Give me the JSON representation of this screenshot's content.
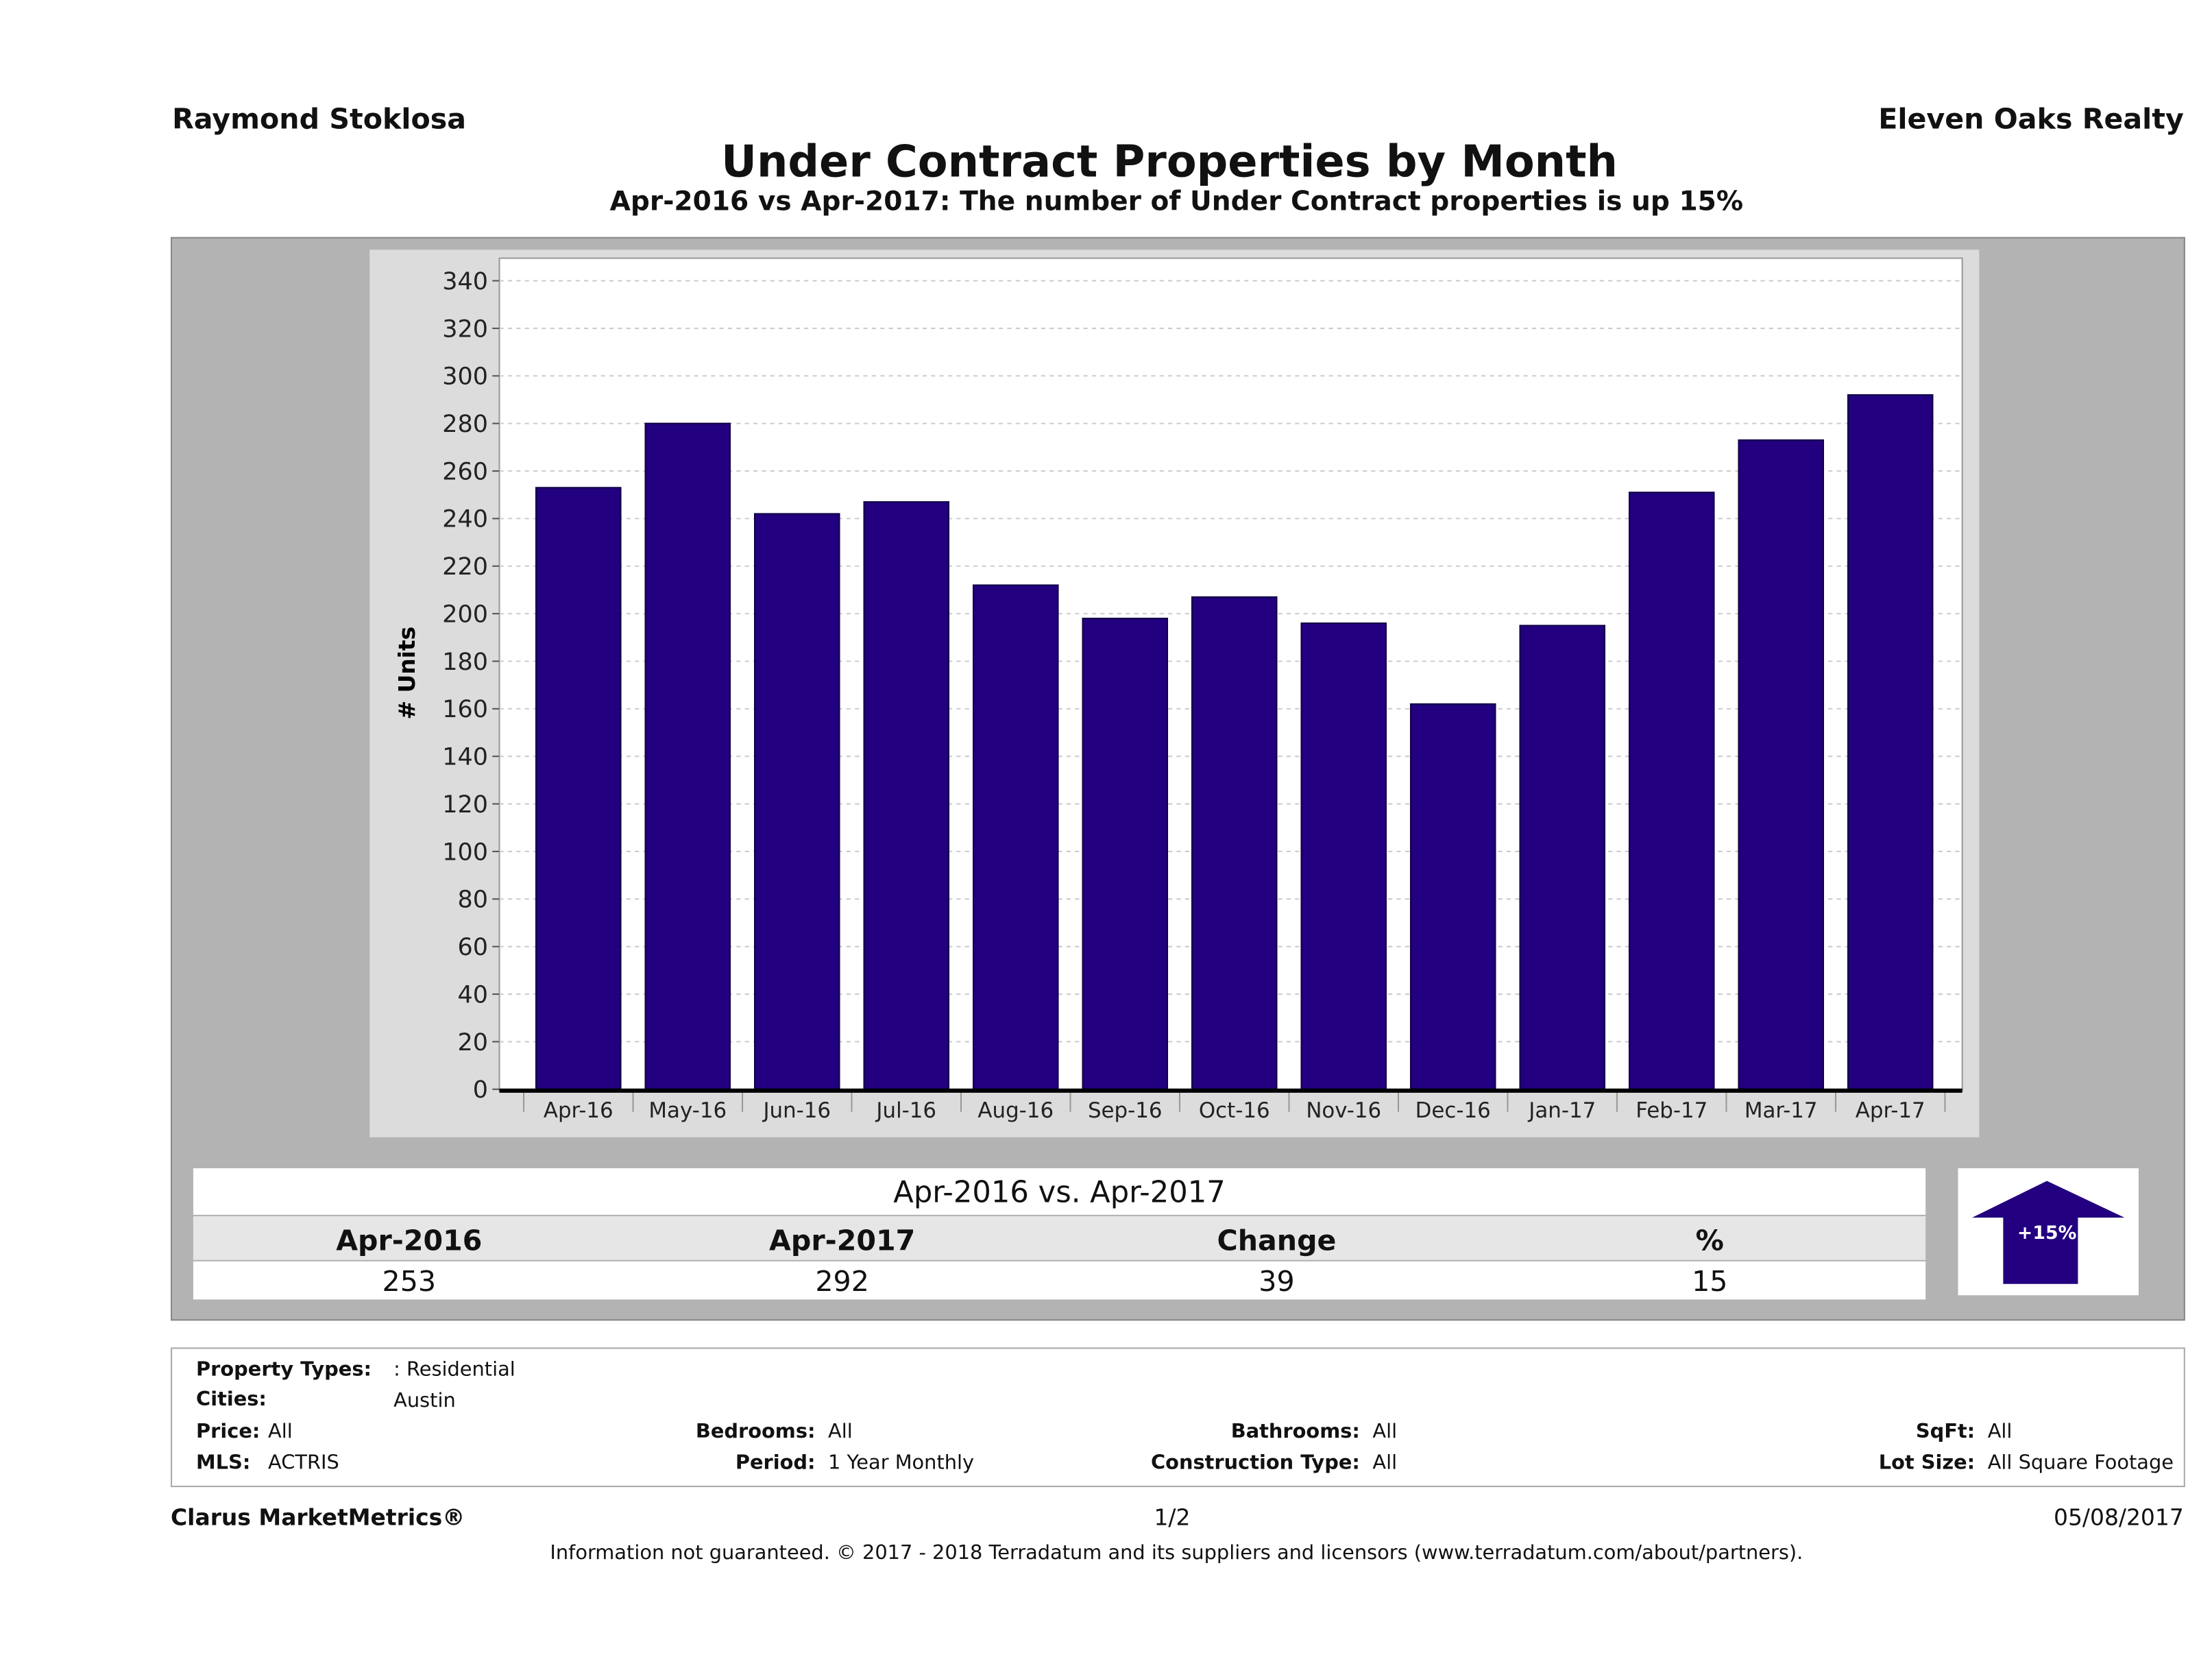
{
  "header": {
    "agent": "Raymond Stoklosa",
    "brokerage": "Eleven Oaks Realty",
    "title": "Under Contract Properties by Month",
    "subtitle": "Apr-2016 vs Apr-2017: The number of Under Contract  properties is up 15%"
  },
  "chart_data": {
    "type": "bar",
    "title": "Under Contract Properties by Month",
    "xlabel": "",
    "ylabel": "# Units",
    "ylim": [
      0,
      350
    ],
    "yticks": [
      0,
      20,
      40,
      60,
      80,
      100,
      120,
      140,
      160,
      180,
      200,
      220,
      240,
      260,
      280,
      300,
      320,
      340
    ],
    "grid": true,
    "categories": [
      "Apr-16",
      "May-16",
      "Jun-16",
      "Jul-16",
      "Aug-16",
      "Sep-16",
      "Oct-16",
      "Nov-16",
      "Dec-16",
      "Jan-17",
      "Feb-17",
      "Mar-17",
      "Apr-17"
    ],
    "values": [
      253,
      280,
      242,
      247,
      212,
      198,
      207,
      196,
      162,
      195,
      251,
      273,
      292
    ],
    "bar_color": "#22007f"
  },
  "summary": {
    "heading": "Apr-2016 vs. Apr-2017",
    "columns": [
      "Apr-2016",
      "Apr-2017",
      "Change",
      "%"
    ],
    "values": [
      "253",
      "292",
      "39",
      "15"
    ],
    "badge": "+15%",
    "badge_icon": "up-arrow-icon"
  },
  "filters": {
    "property_types_label": "Property Types:",
    "property_types": ": Residential",
    "cities_label": "Cities:",
    "cities": "Austin",
    "price_label": "Price:",
    "price": "All",
    "mls_label": "MLS:",
    "mls": "ACTRIS",
    "bedrooms_label": "Bedrooms:",
    "bedrooms": "All",
    "period_label": "Period:",
    "period": "1 Year Monthly",
    "bathrooms_label": "Bathrooms:",
    "bathrooms": "All",
    "construction_label": "Construction Type:",
    "construction": "All",
    "sqft_label": "SqFt:",
    "sqft": "All",
    "lot_label": "Lot Size:",
    "lot": "All Square Footage"
  },
  "footer": {
    "brand": "Clarus MarketMetrics®",
    "page": "1/2",
    "date": "05/08/2017",
    "disclaimer": "Information not guaranteed. © 2017 - 2018 Terradatum and its suppliers and licensors (www.terradatum.com/about/partners)."
  }
}
